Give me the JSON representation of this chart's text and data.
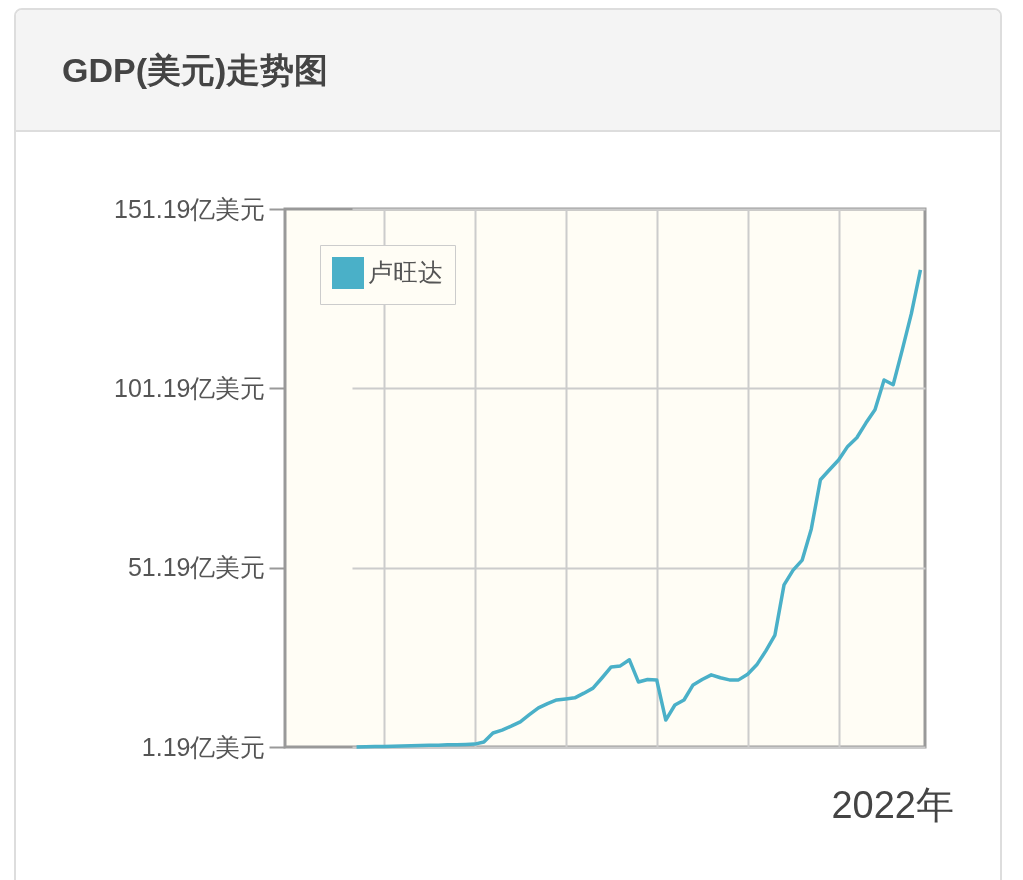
{
  "chart_data": {
    "type": "line",
    "title": "GDP(美元)走势图",
    "annotations": [
      "2022年"
    ],
    "categories": [
      null,
      null,
      null,
      null,
      null,
      null,
      null,
      null,
      null,
      null,
      null,
      null,
      null,
      null,
      null,
      null,
      null,
      null,
      null,
      null,
      null,
      null,
      null,
      null,
      null,
      null,
      null,
      null,
      null,
      null,
      null,
      null,
      null,
      null,
      null,
      null,
      null,
      null,
      null,
      null,
      null,
      null,
      null,
      null,
      null,
      null,
      null,
      null,
      null,
      null,
      null,
      null,
      null,
      null,
      null,
      null,
      null,
      null,
      null,
      null,
      null,
      null,
      null
    ],
    "series": [
      {
        "name": "卢旺达",
        "color": "#4ab0c8",
        "values": [
          1.19,
          1.25,
          1.3,
          1.35,
          1.4,
          1.5,
          1.55,
          1.6,
          1.65,
          1.7,
          1.8,
          1.85,
          1.9,
          2.0,
          2.6,
          5.1,
          5.9,
          7.0,
          8.2,
          10.2,
          12.1,
          13.3,
          14.3,
          14.6,
          14.9,
          16.2,
          17.6,
          20.5,
          23.5,
          23.8,
          25.5,
          19.3,
          20.0,
          19.9,
          8.7,
          12.9,
          14.3,
          18.5,
          20.0,
          21.3,
          20.5,
          19.9,
          19.9,
          21.5,
          24.1,
          28.0,
          32.4,
          46.4,
          50.5,
          53.3,
          62.0,
          75.7,
          78.5,
          81.2,
          85.0,
          87.4,
          91.5,
          95.2,
          103.5,
          102.2,
          111.9,
          122.0,
          134.2
        ]
      }
    ],
    "ylim": [
      1.19,
      151.19
    ],
    "yticks": [
      {
        "value": 1.19,
        "label": "1.19亿美元"
      },
      {
        "value": 51.19,
        "label": "51.19亿美元"
      },
      {
        "value": 101.19,
        "label": "101.19亿美元"
      },
      {
        "value": 151.19,
        "label": "151.19亿美元"
      }
    ],
    "grid": true,
    "legend": "top left",
    "tick_labels": "y",
    "marker": "none",
    "line_style": "solid"
  }
}
